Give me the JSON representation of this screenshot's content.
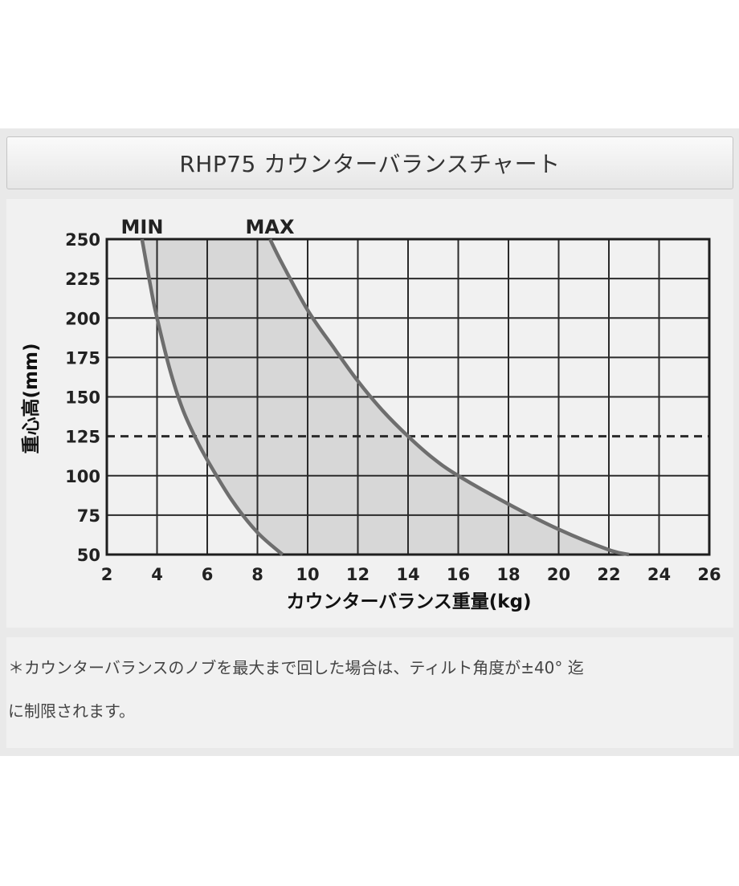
{
  "title": "RHP75 カウンターバランスチャート",
  "chart_data": {
    "type": "area",
    "xlabel": "カウンターバランス重量(kg)",
    "ylabel": "重心高(mm)",
    "xlim": [
      2,
      26
    ],
    "ylim": [
      50,
      250
    ],
    "xticks": [
      "2",
      "4",
      "6",
      "8",
      "10",
      "12",
      "14",
      "16",
      "18",
      "20",
      "22",
      "24",
      "26"
    ],
    "yticks": [
      "50",
      "75",
      "100",
      "125",
      "150",
      "175",
      "200",
      "225",
      "250"
    ],
    "grid": true,
    "reference_line": {
      "y": 125,
      "style": "dashed"
    },
    "series": [
      {
        "name": "MIN",
        "x": [
          3.4,
          3.8,
          4.0,
          4.5,
          5.0,
          5.5,
          6.0,
          7.0,
          8.0,
          9.0
        ],
        "y": [
          250,
          215,
          200,
          168,
          143,
          125,
          110,
          84,
          64,
          50
        ]
      },
      {
        "name": "MAX",
        "x": [
          8.5,
          9.0,
          10.0,
          11.0,
          12.0,
          13.0,
          14.0,
          15.0,
          16.0,
          18.0,
          20.0,
          22.0,
          22.8
        ],
        "y": [
          250,
          234,
          205,
          182,
          160,
          141,
          125,
          111,
          100,
          82,
          66,
          53,
          50
        ]
      }
    ],
    "colors": {
      "fill": "#d7d7d7",
      "curve": "#6e6e6e",
      "grid": "#2a2a2a"
    }
  },
  "note": {
    "line1": "＊カウンターバランスのノブを最大まで回した場合は、ティルト角度が±40° 迄",
    "line2": "に制限されます。"
  }
}
